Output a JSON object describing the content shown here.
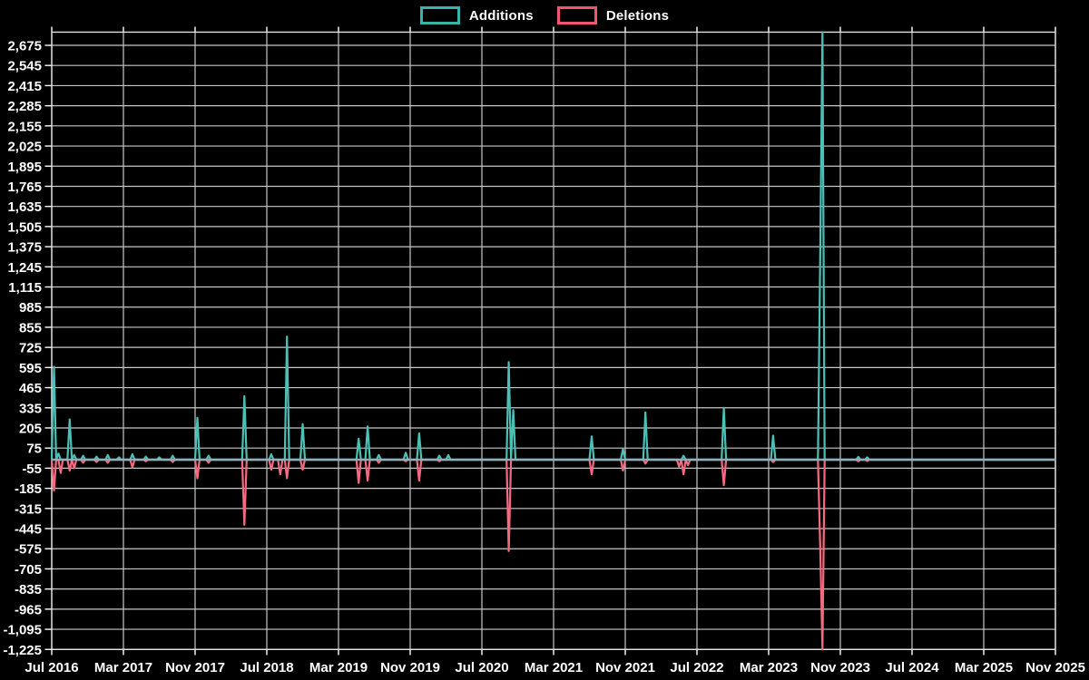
{
  "legend": {
    "items": [
      {
        "label": "Additions",
        "color": "#35b6ad"
      },
      {
        "label": "Deletions",
        "color": "#f2536d"
      }
    ]
  },
  "colors": {
    "background": "#000000",
    "grid": "#c7c7c7",
    "axis_border": "#e2e2e2",
    "tick": "#ffffff",
    "axis_text": "#ffffff",
    "additions_line": "#4cc0b6",
    "deletions_line": "#f56a80",
    "zero_baseline": "#8fb2bc"
  },
  "chart_data": {
    "type": "line",
    "title": "",
    "xlabel": "",
    "ylabel": "",
    "grid": true,
    "legend_position": "top-center",
    "x_axis": {
      "tick_labels": [
        "Jul 2016",
        "Mar 2017",
        "Nov 2017",
        "Jul 2018",
        "Mar 2019",
        "Nov 2019",
        "Jul 2020",
        "Mar 2021",
        "Nov 2021",
        "Jul 2022",
        "Mar 2023",
        "Nov 2023",
        "Jul 2024",
        "Mar 2025",
        "Nov 2025"
      ],
      "tick_month_offsets": [
        0,
        8,
        16,
        24,
        32,
        40,
        48,
        56,
        64,
        72,
        80,
        88,
        96,
        104,
        112
      ],
      "data_start_month": 0,
      "data_end_month": 112,
      "point_step_months": 0.25
    },
    "y_axis": {
      "min": -1225,
      "max": 2675,
      "step": 130,
      "plot_top_value": 2760,
      "tick_labels": [
        "2,675",
        "2,545",
        "2,415",
        "2,285",
        "2,155",
        "2,025",
        "1,895",
        "1,765",
        "1,635",
        "1,505",
        "1,375",
        "1,245",
        "1,115",
        "985",
        "855",
        "725",
        "595",
        "465",
        "335",
        "205",
        "75",
        "-55",
        "-185",
        "-315",
        "-445",
        "-575",
        "-705",
        "-835",
        "-965",
        "-1,095",
        "-1,225"
      ]
    },
    "baseline_value": 0,
    "series": [
      {
        "name": "Additions",
        "color": "#4cc0b6",
        "events": [
          [
            0.2,
            600
          ],
          [
            0.7,
            40
          ],
          [
            2.0,
            260
          ],
          [
            2.6,
            30
          ],
          [
            3.5,
            25
          ],
          [
            5.0,
            20
          ],
          [
            6.3,
            30
          ],
          [
            7.5,
            15
          ],
          [
            9.0,
            35
          ],
          [
            10.5,
            20
          ],
          [
            12.0,
            15
          ],
          [
            13.5,
            25
          ],
          [
            16.3,
            270
          ],
          [
            17.5,
            25
          ],
          [
            21.4,
            410
          ],
          [
            24.6,
            35
          ],
          [
            26.3,
            795
          ],
          [
            27.9,
            230
          ],
          [
            34.3,
            135
          ],
          [
            35.3,
            215
          ],
          [
            36.5,
            30
          ],
          [
            39.5,
            45
          ],
          [
            40.9,
            170
          ],
          [
            43.3,
            25
          ],
          [
            44.3,
            30
          ],
          [
            51.0,
            630
          ],
          [
            51.4,
            320
          ],
          [
            60.3,
            150
          ],
          [
            63.8,
            70
          ],
          [
            66.2,
            305
          ],
          [
            70.5,
            25
          ],
          [
            74.9,
            335
          ],
          [
            80.4,
            155
          ],
          [
            85.8,
            1300
          ],
          [
            86.1,
            2760
          ],
          [
            90.0,
            18
          ],
          [
            90.9,
            15
          ]
        ]
      },
      {
        "name": "Deletions",
        "color": "#f56a80",
        "events": [
          [
            0.2,
            -200
          ],
          [
            0.9,
            -85
          ],
          [
            2.0,
            -70
          ],
          [
            2.6,
            -55
          ],
          [
            3.5,
            -20
          ],
          [
            5.0,
            -15
          ],
          [
            6.3,
            -20
          ],
          [
            9.0,
            -50
          ],
          [
            10.5,
            -10
          ],
          [
            13.5,
            -15
          ],
          [
            16.3,
            -120
          ],
          [
            17.5,
            -20
          ],
          [
            21.4,
            -420
          ],
          [
            24.6,
            -65
          ],
          [
            25.4,
            -95
          ],
          [
            26.3,
            -120
          ],
          [
            27.9,
            -65
          ],
          [
            34.3,
            -150
          ],
          [
            35.3,
            -135
          ],
          [
            36.5,
            -20
          ],
          [
            39.5,
            -10
          ],
          [
            40.9,
            -135
          ],
          [
            43.3,
            -10
          ],
          [
            51.0,
            -590
          ],
          [
            60.3,
            -95
          ],
          [
            63.8,
            -70
          ],
          [
            66.2,
            -25
          ],
          [
            69.9,
            -45
          ],
          [
            70.5,
            -95
          ],
          [
            71.1,
            -35
          ],
          [
            74.9,
            -165
          ],
          [
            80.4,
            -15
          ],
          [
            85.8,
            -560
          ],
          [
            86.1,
            -1225
          ],
          [
            90.0,
            -10
          ],
          [
            90.9,
            -8
          ]
        ]
      }
    ]
  }
}
